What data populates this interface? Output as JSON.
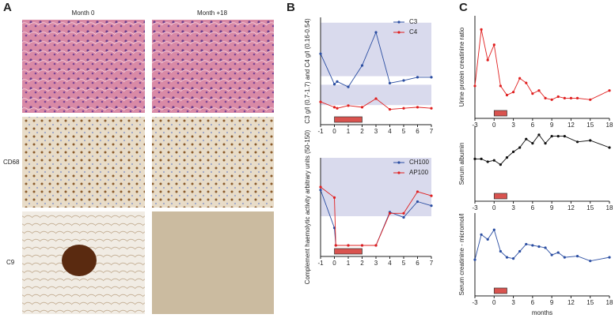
{
  "panels": [
    "A",
    "B",
    "C"
  ],
  "images": {
    "columns": [
      "Month 0",
      "Month +18"
    ],
    "rows": [
      "CD68",
      "C9"
    ]
  },
  "chart_data": [
    {
      "type": "line",
      "ylabel": "C3 g/l (0.7-1.7) and C4 g/l (0.16-0.54)",
      "x": [
        -1,
        0,
        0.2,
        1,
        2,
        3,
        4,
        5,
        6,
        7
      ],
      "xlim": [
        -1,
        7
      ],
      "xticks": [
        -1,
        0,
        1,
        2,
        3,
        4,
        5,
        6,
        7
      ],
      "ylim": [
        0,
        1.8
      ],
      "bands": [
        [
          0.7,
          1.7
        ],
        [
          0.16,
          0.54
        ]
      ],
      "treatment": [
        0,
        2
      ],
      "legend": "upper right",
      "series": [
        {
          "name": "C3",
          "color": "#2b4ea2",
          "values": [
            1.12,
            0.55,
            0.6,
            0.5,
            0.9,
            1.52,
            0.57,
            0.62,
            0.68,
            0.68
          ]
        },
        {
          "name": "C4",
          "color": "#e02020",
          "values": [
            0.22,
            0.12,
            0.1,
            0.15,
            0.12,
            0.28,
            0.08,
            0.1,
            0.12,
            0.1
          ]
        }
      ]
    },
    {
      "type": "line",
      "ylabel": "Complement haemolytic activity arbitrary units (50-150)",
      "x": [
        -1,
        0,
        0.1,
        1,
        2,
        3,
        4,
        5,
        6,
        7
      ],
      "xlim": [
        -1,
        7
      ],
      "xticks": [
        -1,
        0,
        1,
        2,
        3,
        4,
        5,
        6,
        7
      ],
      "ylim": [
        0,
        150
      ],
      "bands": [
        [
          50,
          150
        ]
      ],
      "treatment": [
        0,
        2
      ],
      "legend": "upper right",
      "series": [
        {
          "name": "CH100",
          "color": "#2b4ea2",
          "values": [
            95,
            30,
            0,
            0,
            0,
            0,
            57,
            48,
            75,
            68
          ]
        },
        {
          "name": "AP100",
          "color": "#e02020",
          "values": [
            100,
            82,
            0,
            0,
            0,
            0,
            55,
            55,
            92,
            85
          ]
        }
      ]
    },
    {
      "type": "line",
      "x": [
        -3,
        -2,
        -1,
        0,
        1,
        2,
        3,
        4,
        5,
        6,
        7,
        8,
        9,
        10,
        11,
        12,
        13,
        15,
        18
      ],
      "xlim": [
        -3,
        18
      ],
      "xticks": [
        -3,
        0,
        3,
        6,
        9,
        12,
        15,
        18
      ],
      "ylim": [
        0,
        3000
      ],
      "treatment": [
        0,
        2
      ],
      "series": [
        {
          "name": "Urine protein creatinine ratio",
          "color": "#e02020",
          "values": [
            700,
            2550,
            1550,
            2050,
            700,
            400,
            500,
            950,
            800,
            450,
            550,
            300,
            250,
            350,
            300,
            300,
            300,
            250,
            550
          ]
        }
      ]
    },
    {
      "type": "line",
      "x": [
        -3,
        -2,
        -1,
        0,
        1,
        2,
        3,
        4,
        5,
        6,
        7,
        8,
        9,
        10,
        11,
        13,
        15,
        18
      ],
      "xlim": [
        -3,
        18
      ],
      "xticks": [
        -3,
        0,
        3,
        6,
        9,
        12,
        15,
        18
      ],
      "ylim": [
        0,
        45
      ],
      "treatment": [
        0,
        2
      ],
      "series": [
        {
          "name": "Serum albumin",
          "color": "#111111",
          "values": [
            22,
            22,
            20,
            21,
            18,
            23,
            27,
            30,
            36,
            33,
            39,
            33,
            38,
            38,
            38,
            34,
            35,
            30
          ]
        }
      ]
    },
    {
      "type": "line",
      "x": [
        -3,
        -2,
        -1,
        0,
        1,
        2,
        3,
        4,
        5,
        6,
        7,
        8,
        9,
        10,
        11,
        13,
        15,
        18
      ],
      "xlim": [
        -3,
        18
      ],
      "xticks": [
        -3,
        0,
        3,
        6,
        9,
        12,
        15,
        18
      ],
      "ylim": [
        0,
        300
      ],
      "treatment": [
        0,
        2
      ],
      "xlabel": "months",
      "series": [
        {
          "name": "Serum creatinine - micromol/l",
          "color": "#2b4ea2",
          "values": [
            105,
            210,
            190,
            230,
            140,
            115,
            110,
            140,
            170,
            165,
            160,
            155,
            125,
            135,
            115,
            120,
            100,
            115
          ]
        }
      ]
    }
  ]
}
